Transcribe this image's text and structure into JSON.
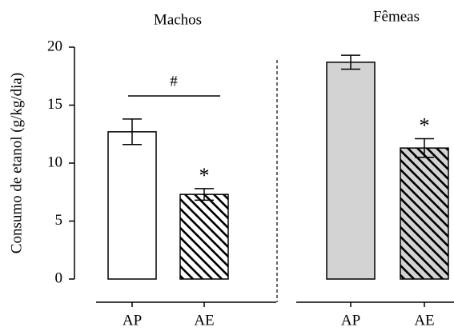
{
  "chart_data": {
    "type": "bar",
    "ylabel": "Consumo de etanol (g/kg/dia)",
    "groups": [
      "Machos",
      "Fêmeas"
    ],
    "categories": [
      "AP",
      "AE",
      "AP",
      "AE"
    ],
    "values": [
      12.7,
      7.3,
      18.7,
      11.3
    ],
    "errors": [
      1.1,
      0.5,
      0.6,
      0.8
    ],
    "colors": [
      "#ffffff",
      "#ffffff",
      "#d3d3d3",
      "#d3d3d3"
    ],
    "hatch": [
      false,
      true,
      false,
      true
    ],
    "ylim": [
      0,
      20
    ],
    "yticks": [
      0,
      5,
      10,
      15,
      20
    ],
    "annotations": [
      {
        "text": "#",
        "categories": [
          0,
          1
        ]
      },
      {
        "text": "*",
        "categories": [
          1
        ]
      },
      {
        "text": "*",
        "categories": [
          3
        ]
      }
    ]
  }
}
